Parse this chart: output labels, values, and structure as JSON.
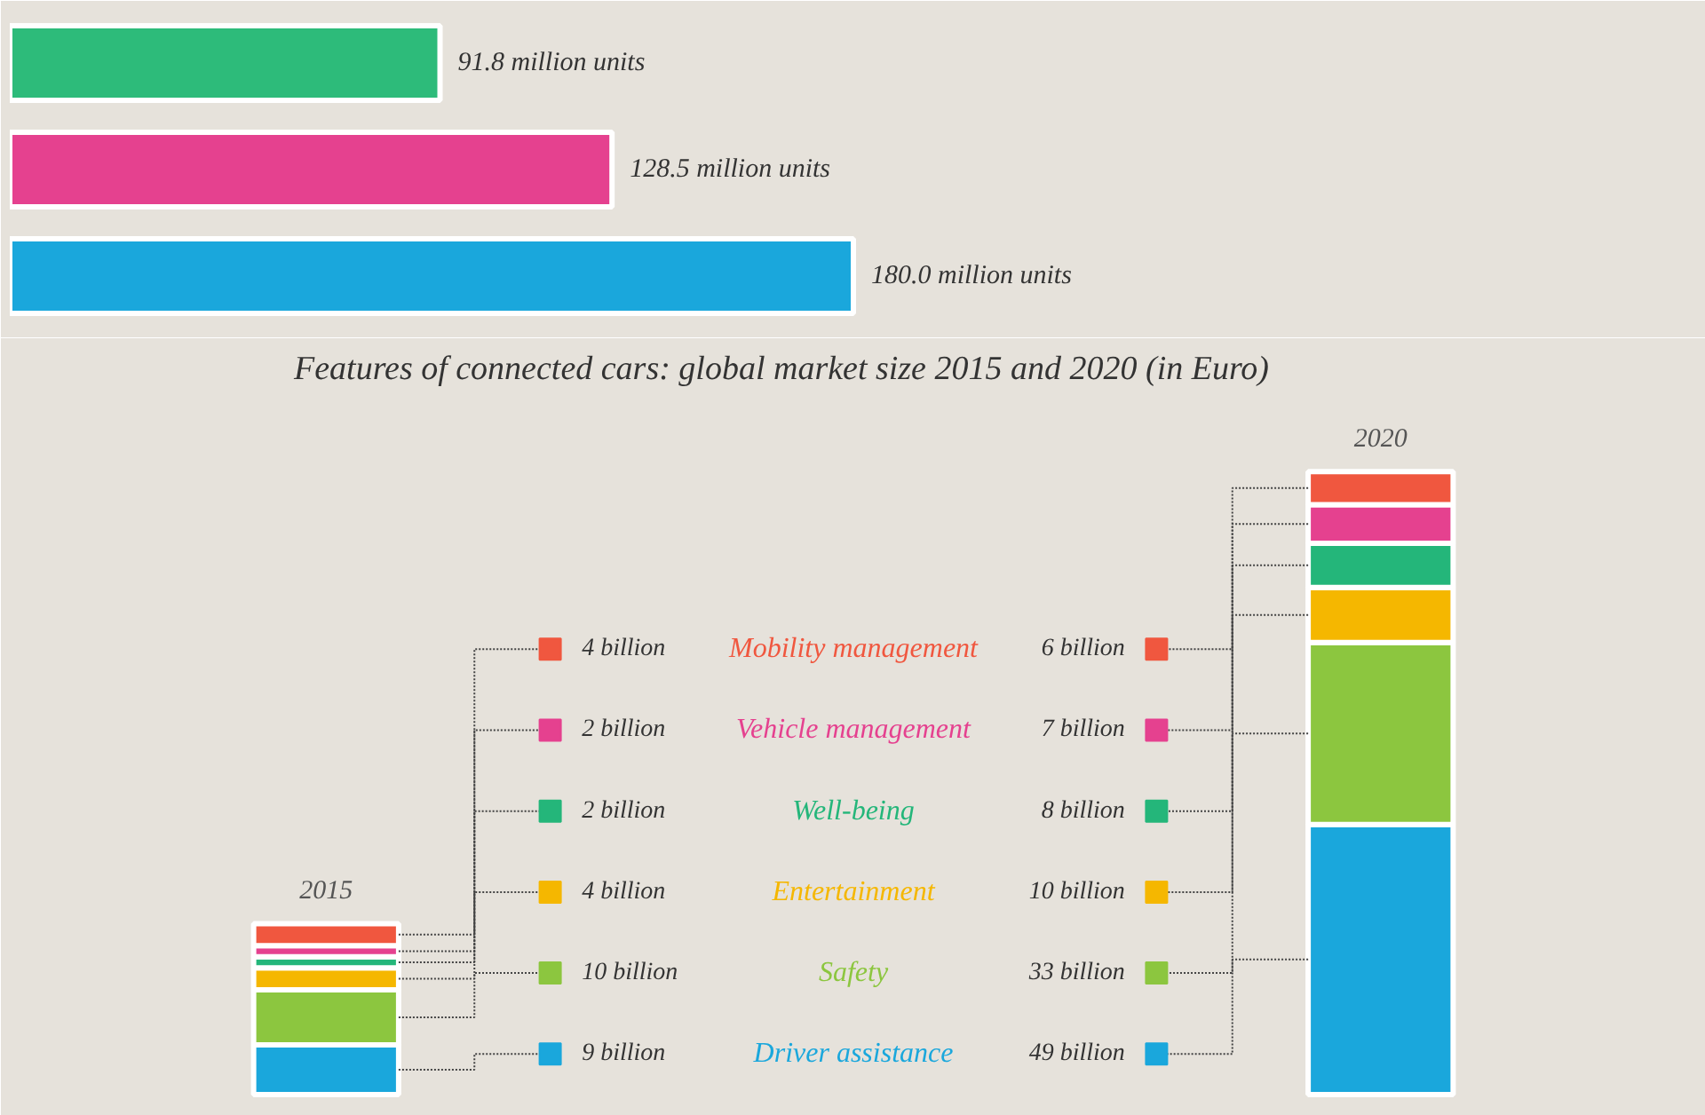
{
  "chart_data": [
    {
      "type": "bar",
      "orientation": "horizontal",
      "categories": [
        null,
        null,
        null
      ],
      "values": [
        91.8,
        128.5,
        180.0
      ],
      "colors": [
        "#2dbb7a",
        "#e5418f",
        "#1aa7dc"
      ],
      "value_labels": [
        "91.8 million units",
        "128.5 million units",
        "180.0 million units"
      ]
    },
    {
      "type": "bar",
      "stacked": true,
      "title": "Features of connected cars: global market size 2015 and 2020 (in Euro)",
      "categories": [
        "2015",
        "2020"
      ],
      "series": [
        {
          "name": "Driver assistance",
          "color": "#1aa7dc",
          "values": [
            9,
            49
          ],
          "value_labels": [
            "9 billion",
            "49 billion"
          ]
        },
        {
          "name": "Safety",
          "color": "#8cc63f",
          "values": [
            10,
            33
          ],
          "value_labels": [
            "10 billion",
            "33 billion"
          ]
        },
        {
          "name": "Entertainment",
          "color": "#f5b700",
          "values": [
            4,
            10
          ],
          "value_labels": [
            "4 billion",
            "10 billion"
          ]
        },
        {
          "name": "Well-being",
          "color": "#24b67a",
          "values": [
            2,
            8
          ],
          "value_labels": [
            "2 billion",
            "8 billion"
          ]
        },
        {
          "name": "Vehicle management",
          "color": "#e5418f",
          "values": [
            2,
            7
          ],
          "value_labels": [
            "2 billion",
            "7 billion"
          ]
        },
        {
          "name": "Mobility management",
          "color": "#f0573f",
          "values": [
            4,
            6
          ],
          "value_labels": [
            "4 billion",
            "6 billion"
          ]
        }
      ]
    }
  ]
}
